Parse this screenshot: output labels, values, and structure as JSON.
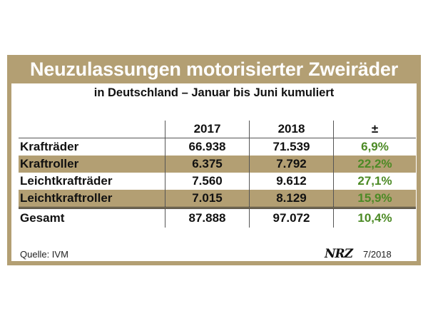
{
  "title": "Neuzulassungen motorisierter Zweiräder",
  "subtitle": "in Deutschland – Januar bis Juni kumuliert",
  "table": {
    "headers": [
      "",
      "2017",
      "2018",
      "±"
    ],
    "rows": [
      {
        "label": "Krafträder",
        "v2017": "66.938",
        "v2018": "71.539",
        "change": "6,9%",
        "shaded": false
      },
      {
        "label": "Kraftroller",
        "v2017": "6.375",
        "v2018": "7.792",
        "change": "22,2%",
        "shaded": true
      },
      {
        "label": "Leichtkrafträder",
        "v2017": "7.560",
        "v2018": "9.612",
        "change": "27,1%",
        "shaded": false
      },
      {
        "label": "Leichtkraftroller",
        "v2017": "7.015",
        "v2018": "8.129",
        "change": "15,9%",
        "shaded": true
      }
    ],
    "total": {
      "label": "Gesamt",
      "v2017": "87.888",
      "v2018": "97.072",
      "change": "10,4%"
    }
  },
  "source": "Quelle: IVM",
  "logo": "NRZ",
  "date": "7/2018",
  "colors": {
    "frame": "#b39f73",
    "change_text": "#4c8a25"
  }
}
